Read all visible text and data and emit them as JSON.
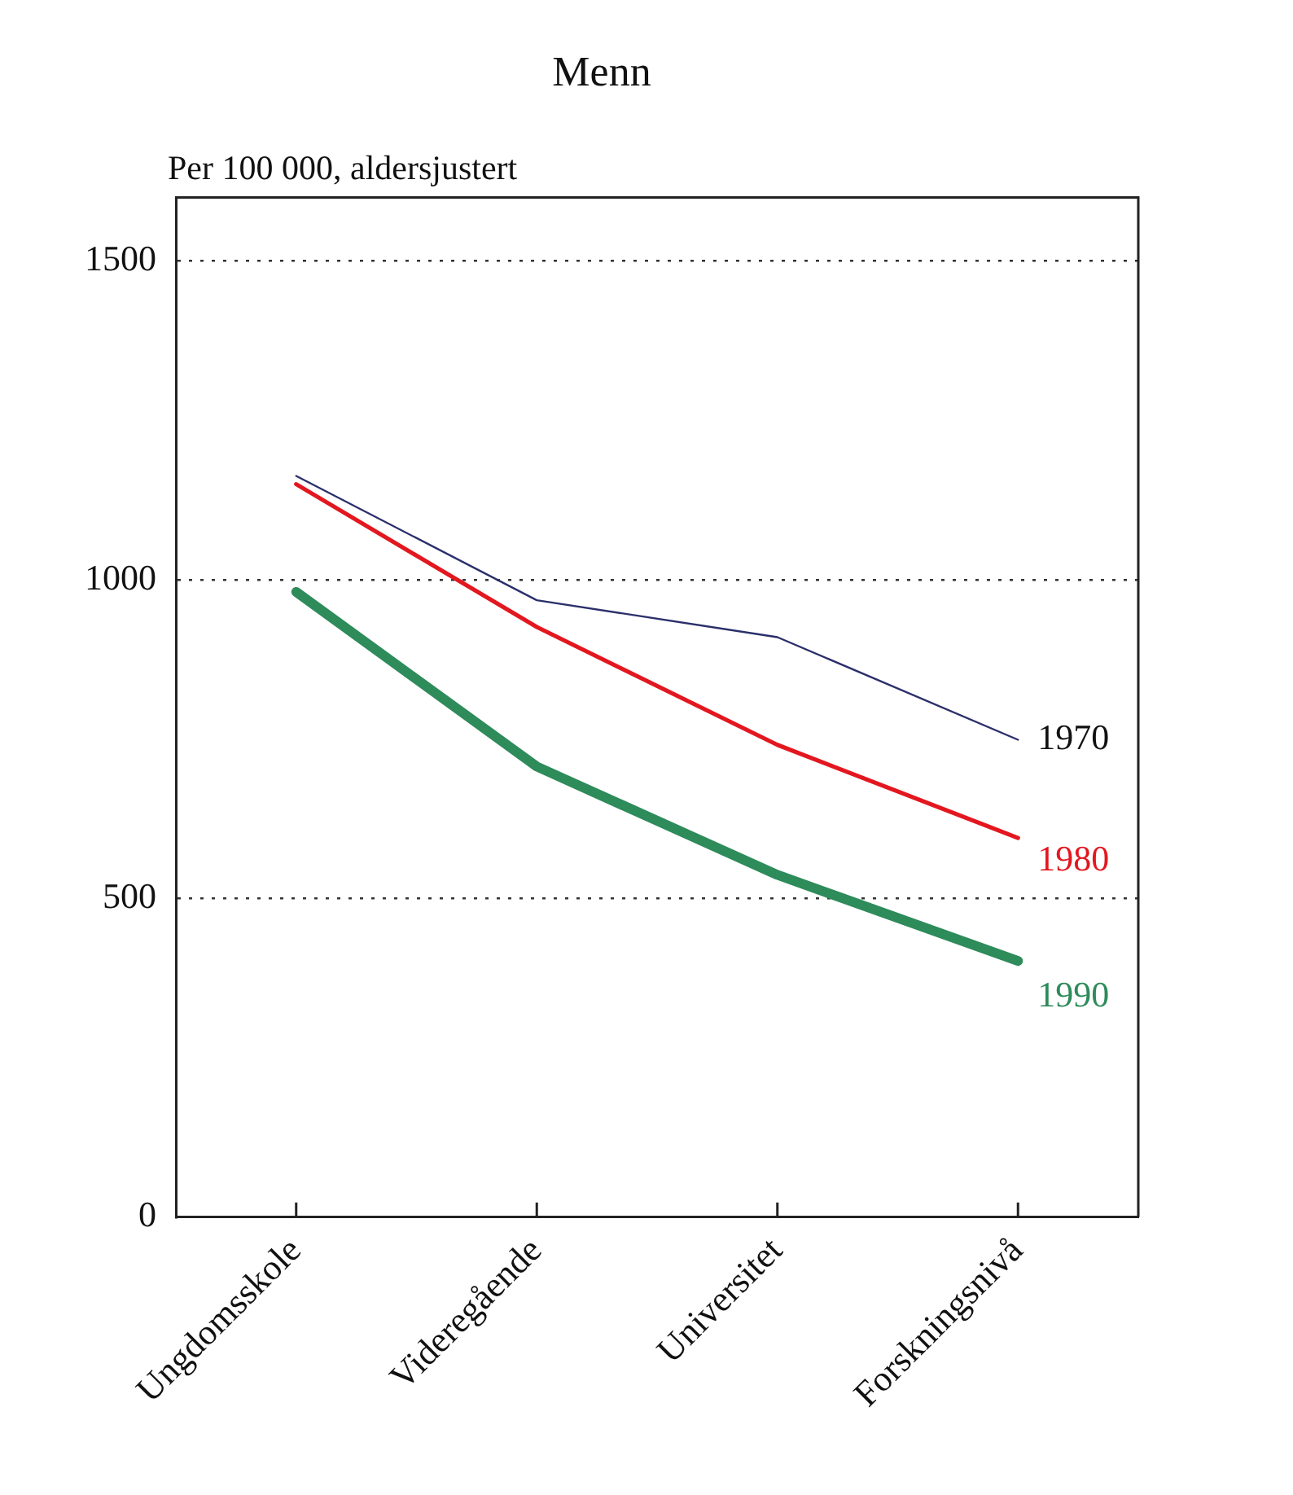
{
  "chart_data": {
    "type": "line",
    "title": "Menn",
    "ylabel": "Per 100 000, aldersjustert",
    "categories": [
      "Ungdomsskole",
      "Videregående",
      "Universitet",
      "Forskningsnivå"
    ],
    "series": [
      {
        "name": "1970",
        "color": "#2b2f6b",
        "values": [
          1163,
          968,
          910,
          749
        ]
      },
      {
        "name": "1980",
        "color": "#e3171f",
        "values": [
          1150,
          926,
          741,
          595
        ]
      },
      {
        "name": "1990",
        "color": "#2e8b5a",
        "values": [
          981,
          707,
          537,
          402
        ]
      }
    ],
    "ylim": [
      0,
      1600
    ],
    "yticks": [
      0,
      500,
      1000,
      1500
    ],
    "grid": "y",
    "legend": false,
    "marker": "none",
    "line_style": "solid"
  }
}
